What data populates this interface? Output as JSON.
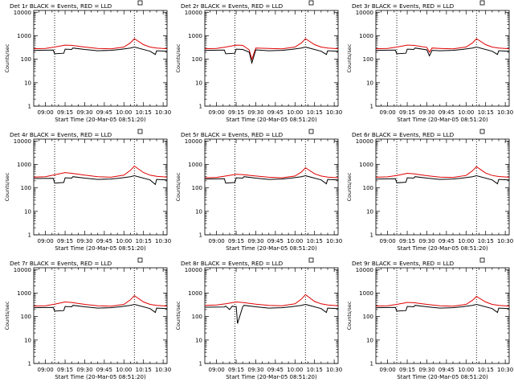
{
  "colors": {
    "events": "#000000",
    "lld": "#e00000",
    "background": "#ffffff"
  },
  "shared": {
    "ylabel": "Counts/sec",
    "xlabel": "Start Time (20-Mar-05 08:51:20)"
  },
  "chart_data": [
    {
      "type": "line",
      "title": "Det 1r BLACK = Events, RED = LLD",
      "xlabel": "Start Time (20-Mar-05 08:51:20)",
      "ylabel": "Counts/sec",
      "y_scale": "log",
      "ylim": [
        1,
        12000
      ],
      "x_ticks": [
        "09:00",
        "09:15",
        "09:30",
        "09:45",
        "10:00",
        "10:15",
        "10:30"
      ],
      "y_ticks": [
        "1",
        "10",
        "100",
        "1000",
        "10000"
      ],
      "xlim": [
        "08:51",
        "10:33"
      ],
      "vlines": [
        "09:07",
        "10:08"
      ],
      "series": [
        {
          "color": "red",
          "x": [
            "08:51",
            "09:00",
            "09:07",
            "09:15",
            "09:20",
            "09:30",
            "09:40",
            "09:50",
            "10:00",
            "10:05",
            "10:08",
            "10:15",
            "10:20",
            "10:25",
            "10:33"
          ],
          "y": [
            280,
            290,
            330,
            400,
            390,
            330,
            290,
            275,
            330,
            500,
            750,
            420,
            330,
            300,
            280
          ]
        },
        {
          "color": "black",
          "x": [
            "08:51",
            "09:06",
            "09:07",
            "09:14",
            "09:15",
            "09:20",
            "09:21",
            "09:30",
            "09:40",
            "09:50",
            "09:57",
            "10:05",
            "10:08",
            "10:20",
            "10:24",
            "10:25",
            "10:33"
          ],
          "y": [
            240,
            245,
            170,
            180,
            270,
            260,
            300,
            260,
            230,
            240,
            260,
            300,
            330,
            220,
            160,
            230,
            220
          ]
        }
      ]
    },
    {
      "type": "line",
      "title": "Det 2r BLACK = Events, RED = LLD",
      "xlabel": "Start Time (20-Mar-05 08:51:20)",
      "ylabel": "Counts/sec",
      "y_scale": "log",
      "ylim": [
        1,
        12000
      ],
      "x_ticks": [
        "09:00",
        "09:15",
        "09:30",
        "09:45",
        "10:00",
        "10:15",
        "10:30"
      ],
      "y_ticks": [
        "1",
        "10",
        "100",
        "1000",
        "10000"
      ],
      "xlim": [
        "08:51",
        "10:33"
      ],
      "vlines": [
        "09:14",
        "10:08"
      ],
      "series": [
        {
          "color": "red",
          "x": [
            "08:51",
            "09:00",
            "09:07",
            "09:15",
            "09:20",
            "09:25",
            "09:27",
            "09:30",
            "09:40",
            "09:50",
            "10:00",
            "10:05",
            "10:08",
            "10:15",
            "10:20",
            "10:25",
            "10:33"
          ],
          "y": [
            280,
            290,
            330,
            400,
            390,
            250,
            100,
            300,
            290,
            275,
            330,
            500,
            750,
            420,
            330,
            300,
            280
          ]
        },
        {
          "color": "black",
          "x": [
            "08:51",
            "09:06",
            "09:07",
            "09:14",
            "09:15",
            "09:20",
            "09:25",
            "09:27",
            "09:30",
            "09:40",
            "09:50",
            "09:57",
            "10:05",
            "10:08",
            "10:20",
            "10:24",
            "10:25",
            "10:33"
          ],
          "y": [
            240,
            245,
            170,
            180,
            270,
            260,
            200,
            70,
            250,
            230,
            240,
            260,
            300,
            330,
            220,
            160,
            230,
            220
          ]
        }
      ]
    },
    {
      "type": "line",
      "title": "Det 3r BLACK = Events, RED = LLD",
      "xlabel": "Start Time (20-Mar-05 08:51:20)",
      "ylabel": "Counts/sec",
      "y_scale": "log",
      "ylim": [
        1,
        12000
      ],
      "x_ticks": [
        "09:00",
        "09:15",
        "09:30",
        "09:45",
        "10:00",
        "10:15",
        "10:30"
      ],
      "y_ticks": [
        "1",
        "10",
        "100",
        "1000",
        "10000"
      ],
      "xlim": [
        "08:51",
        "10:33"
      ],
      "vlines": [
        "09:07",
        "10:08"
      ],
      "series": [
        {
          "color": "red",
          "x": [
            "08:51",
            "09:00",
            "09:07",
            "09:15",
            "09:20",
            "09:30",
            "09:32",
            "09:34",
            "09:40",
            "09:50",
            "10:00",
            "10:05",
            "10:08",
            "10:15",
            "10:20",
            "10:25",
            "10:33"
          ],
          "y": [
            280,
            290,
            330,
            400,
            390,
            320,
            200,
            300,
            290,
            275,
            330,
            500,
            750,
            420,
            330,
            300,
            280
          ]
        },
        {
          "color": "black",
          "x": [
            "08:51",
            "09:06",
            "09:07",
            "09:14",
            "09:15",
            "09:20",
            "09:21",
            "09:30",
            "09:32",
            "09:34",
            "09:40",
            "09:50",
            "09:57",
            "10:05",
            "10:08",
            "10:20",
            "10:24",
            "10:25",
            "10:33"
          ],
          "y": [
            240,
            245,
            170,
            180,
            270,
            260,
            300,
            250,
            140,
            240,
            230,
            240,
            260,
            300,
            330,
            220,
            160,
            230,
            220
          ]
        }
      ]
    },
    {
      "type": "line",
      "title": "Det 4r BLACK = Events, RED = LLD",
      "xlabel": "Start Time (20-Mar-05 08:51:20)",
      "ylabel": "Counts/sec",
      "y_scale": "log",
      "ylim": [
        1,
        12000
      ],
      "x_ticks": [
        "09:00",
        "09:15",
        "09:30",
        "09:45",
        "10:00",
        "10:15",
        "10:30"
      ],
      "y_ticks": [
        "1",
        "10",
        "100",
        "1000",
        "10000"
      ],
      "xlim": [
        "08:51",
        "10:33"
      ],
      "vlines": [
        "09:07",
        "10:08"
      ],
      "series": [
        {
          "color": "red",
          "x": [
            "08:51",
            "09:00",
            "09:07",
            "09:15",
            "09:20",
            "09:30",
            "09:40",
            "09:50",
            "10:00",
            "10:05",
            "10:08",
            "10:15",
            "10:20",
            "10:25",
            "10:33"
          ],
          "y": [
            290,
            300,
            360,
            450,
            420,
            350,
            300,
            285,
            350,
            560,
            850,
            450,
            350,
            310,
            290
          ]
        },
        {
          "color": "black",
          "x": [
            "08:51",
            "09:06",
            "09:07",
            "09:14",
            "09:15",
            "09:20",
            "09:21",
            "09:30",
            "09:40",
            "09:50",
            "09:57",
            "10:05",
            "10:08",
            "10:20",
            "10:24",
            "10:25",
            "10:33"
          ],
          "y": [
            250,
            255,
            160,
            170,
            270,
            260,
            300,
            260,
            230,
            240,
            260,
            300,
            330,
            220,
            140,
            230,
            220
          ]
        }
      ]
    },
    {
      "type": "line",
      "title": "Det 5r BLACK = Events, RED = LLD",
      "xlabel": "Start Time (20-Mar-05 08:51:20)",
      "ylabel": "Counts/sec",
      "y_scale": "log",
      "ylim": [
        1,
        12000
      ],
      "x_ticks": [
        "09:00",
        "09:15",
        "09:30",
        "09:45",
        "10:00",
        "10:15",
        "10:30"
      ],
      "y_ticks": [
        "1",
        "10",
        "100",
        "1000",
        "10000"
      ],
      "xlim": [
        "08:51",
        "10:33"
      ],
      "vlines": [
        "09:14",
        "10:08"
      ],
      "series": [
        {
          "color": "red",
          "x": [
            "08:51",
            "09:00",
            "09:07",
            "09:15",
            "09:20",
            "09:30",
            "09:40",
            "09:50",
            "10:00",
            "10:05",
            "10:08",
            "10:15",
            "10:20",
            "10:25",
            "10:33"
          ],
          "y": [
            270,
            280,
            320,
            380,
            370,
            320,
            285,
            270,
            320,
            480,
            720,
            400,
            320,
            290,
            270
          ]
        },
        {
          "color": "black",
          "x": [
            "08:51",
            "09:06",
            "09:07",
            "09:14",
            "09:15",
            "09:20",
            "09:21",
            "09:30",
            "09:40",
            "09:50",
            "09:57",
            "10:05",
            "10:08",
            "10:20",
            "10:24",
            "10:25",
            "10:33"
          ],
          "y": [
            240,
            245,
            160,
            170,
            270,
            260,
            300,
            260,
            230,
            240,
            260,
            300,
            330,
            220,
            150,
            230,
            220
          ]
        }
      ]
    },
    {
      "type": "line",
      "title": "Det 6r BLACK = Events, RED = LLD",
      "xlabel": "Start Time (20-Mar-05 08:51:20)",
      "ylabel": "Counts/sec",
      "y_scale": "log",
      "ylim": [
        1,
        12000
      ],
      "x_ticks": [
        "09:00",
        "09:15",
        "09:30",
        "09:45",
        "10:00",
        "10:15",
        "10:30"
      ],
      "y_ticks": [
        "1",
        "10",
        "100",
        "1000",
        "10000"
      ],
      "xlim": [
        "08:51",
        "10:33"
      ],
      "vlines": [
        "09:07",
        "10:08"
      ],
      "series": [
        {
          "color": "red",
          "x": [
            "08:51",
            "09:00",
            "09:07",
            "09:15",
            "09:20",
            "09:30",
            "09:40",
            "09:50",
            "10:00",
            "10:05",
            "10:08",
            "10:15",
            "10:20",
            "10:25",
            "10:33"
          ],
          "y": [
            285,
            295,
            340,
            420,
            400,
            330,
            290,
            280,
            340,
            540,
            800,
            430,
            340,
            305,
            285
          ]
        },
        {
          "color": "black",
          "x": [
            "08:51",
            "09:06",
            "09:07",
            "09:14",
            "09:15",
            "09:20",
            "09:21",
            "09:30",
            "09:40",
            "09:50",
            "09:57",
            "10:05",
            "10:08",
            "10:20",
            "10:24",
            "10:25",
            "10:33"
          ],
          "y": [
            240,
            245,
            165,
            175,
            270,
            260,
            300,
            260,
            230,
            240,
            260,
            300,
            330,
            220,
            150,
            230,
            220
          ]
        }
      ]
    },
    {
      "type": "line",
      "title": "Det 7r BLACK = Events, RED = LLD",
      "xlabel": "Start Time (20-Mar-05 08:51:20)",
      "ylabel": "Counts/sec",
      "y_scale": "log",
      "ylim": [
        1,
        12000
      ],
      "x_ticks": [
        "09:00",
        "09:15",
        "09:30",
        "09:45",
        "10:00",
        "10:15",
        "10:30"
      ],
      "y_ticks": [
        "1",
        "10",
        "100",
        "1000",
        "10000"
      ],
      "xlim": [
        "08:51",
        "10:33"
      ],
      "vlines": [
        "09:07",
        "10:08"
      ],
      "series": [
        {
          "color": "red",
          "x": [
            "08:51",
            "09:00",
            "09:07",
            "09:15",
            "09:20",
            "09:30",
            "09:40",
            "09:50",
            "10:00",
            "10:05",
            "10:08",
            "10:15",
            "10:20",
            "10:25",
            "10:33"
          ],
          "y": [
            280,
            290,
            340,
            420,
            400,
            330,
            290,
            275,
            330,
            520,
            780,
            420,
            330,
            300,
            280
          ]
        },
        {
          "color": "black",
          "x": [
            "08:51",
            "09:06",
            "09:07",
            "09:14",
            "09:15",
            "09:20",
            "09:21",
            "09:30",
            "09:40",
            "09:50",
            "09:57",
            "10:05",
            "10:08",
            "10:20",
            "10:24",
            "10:25",
            "10:33"
          ],
          "y": [
            240,
            245,
            170,
            180,
            270,
            260,
            300,
            260,
            230,
            240,
            260,
            300,
            330,
            220,
            150,
            230,
            220
          ]
        }
      ]
    },
    {
      "type": "line",
      "title": "Det 8r BLACK = Events, RED = LLD",
      "xlabel": "Start Time (20-Mar-05 08:51:20)",
      "ylabel": "Counts/sec",
      "y_scale": "log",
      "ylim": [
        1,
        12000
      ],
      "x_ticks": [
        "09:00",
        "09:15",
        "09:30",
        "09:45",
        "10:00",
        "10:15",
        "10:30"
      ],
      "y_ticks": [
        "1",
        "10",
        "100",
        "1000",
        "10000"
      ],
      "xlim": [
        "08:51",
        "10:33"
      ],
      "vlines": [
        "09:14",
        "10:08"
      ],
      "series": [
        {
          "color": "red",
          "x": [
            "08:51",
            "09:00",
            "09:07",
            "09:15",
            "09:20",
            "09:30",
            "09:40",
            "09:50",
            "10:00",
            "10:05",
            "10:08",
            "10:15",
            "10:20",
            "10:25",
            "10:33"
          ],
          "y": [
            300,
            310,
            350,
            420,
            400,
            340,
            300,
            290,
            350,
            560,
            860,
            440,
            350,
            310,
            290
          ]
        },
        {
          "color": "black",
          "x": [
            "08:51",
            "09:06",
            "09:07",
            "09:10",
            "09:12",
            "09:14",
            "09:15",
            "09:16",
            "09:20",
            "09:21",
            "09:30",
            "09:40",
            "09:50",
            "09:57",
            "10:05",
            "10:08",
            "10:20",
            "10:24",
            "10:25",
            "10:33"
          ],
          "y": [
            250,
            255,
            280,
            200,
            280,
            260,
            270,
            50,
            260,
            300,
            260,
            230,
            240,
            260,
            300,
            330,
            220,
            150,
            230,
            220
          ]
        }
      ]
    },
    {
      "type": "line",
      "title": "Det 9r BLACK = Events, RED = LLD",
      "xlabel": "Start Time (20-Mar-05 08:51:20)",
      "ylabel": "Counts/sec",
      "y_scale": "log",
      "ylim": [
        1,
        12000
      ],
      "x_ticks": [
        "09:00",
        "09:15",
        "09:30",
        "09:45",
        "10:00",
        "10:15",
        "10:30"
      ],
      "y_ticks": [
        "1",
        "10",
        "100",
        "1000",
        "10000"
      ],
      "xlim": [
        "08:51",
        "10:33"
      ],
      "vlines": [
        "09:07",
        "10:08"
      ],
      "series": [
        {
          "color": "red",
          "x": [
            "08:51",
            "09:00",
            "09:07",
            "09:15",
            "09:20",
            "09:30",
            "09:40",
            "09:50",
            "10:00",
            "10:05",
            "10:08",
            "10:15",
            "10:20",
            "10:25",
            "10:33"
          ],
          "y": [
            280,
            290,
            330,
            400,
            390,
            330,
            290,
            275,
            330,
            500,
            720,
            420,
            330,
            300,
            280
          ]
        },
        {
          "color": "black",
          "x": [
            "08:51",
            "09:06",
            "09:07",
            "09:14",
            "09:15",
            "09:20",
            "09:21",
            "09:30",
            "09:40",
            "09:50",
            "09:57",
            "10:05",
            "10:08",
            "10:20",
            "10:24",
            "10:25",
            "10:33"
          ],
          "y": [
            240,
            245,
            170,
            180,
            270,
            260,
            300,
            260,
            230,
            240,
            260,
            300,
            330,
            220,
            150,
            230,
            220
          ]
        }
      ]
    }
  ]
}
